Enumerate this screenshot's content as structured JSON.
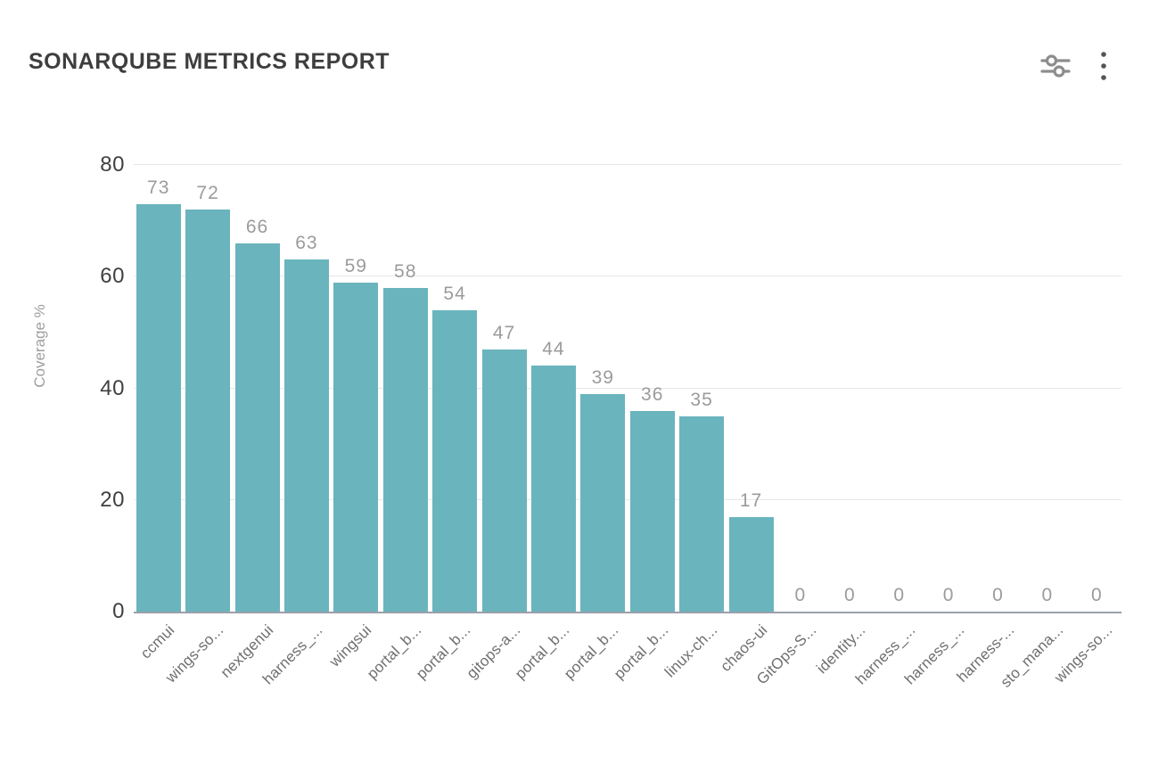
{
  "header": {
    "title": "SONARQUBE METRICS REPORT",
    "actions": [
      {
        "icon": "filter-sliders-icon"
      },
      {
        "icon": "kebab-menu-icon"
      }
    ]
  },
  "colors": {
    "bar": "#6ab4bd",
    "grid": "#e7e7e7",
    "axis": "#9aa0ab",
    "vlabel": "#9b9b9b",
    "tick": "#404040",
    "xlabel": "#6f6f6f",
    "muted": "#9e9e9e",
    "title": "#3e3e3e",
    "icon": "#8d8d8d",
    "menu_icon": "#555555"
  },
  "chart_data": {
    "type": "bar",
    "title": "SONARQUBE METRICS REPORT",
    "categories": [
      "ccmui",
      "wings-so...",
      "nextgenui",
      "harness_...",
      "wingsui",
      "portal_b...",
      "portal_b...",
      "gitops-a...",
      "portal_b...",
      "portal_b...",
      "portal_b...",
      "linux-ch...",
      "chaos-ui",
      "GitOps-S...",
      "identity...",
      "harness_...",
      "harness_...",
      "harness-...",
      "sto_mana...",
      "wings-so..."
    ],
    "values": [
      73,
      72,
      66,
      63,
      59,
      58,
      54,
      47,
      44,
      39,
      36,
      35,
      17,
      0,
      0,
      0,
      0,
      0,
      0,
      0
    ],
    "xlabel": "",
    "ylabel": "Coverage %",
    "ylim": [
      0,
      80
    ],
    "yticks": [
      0,
      20,
      40,
      60,
      80
    ],
    "grid": true,
    "legend": false,
    "value_labels_shown": true,
    "x_label_rotation_deg": 45
  }
}
